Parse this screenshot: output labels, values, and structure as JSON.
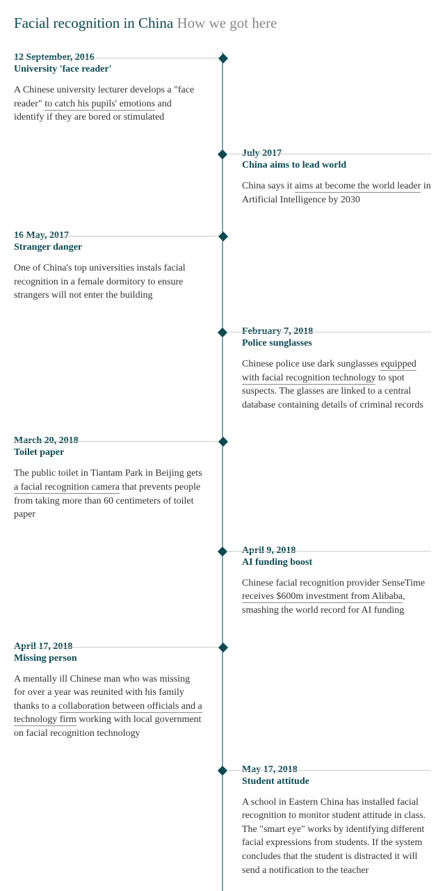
{
  "title": {
    "bold": "Facial recognition in China",
    "light": "How we got here"
  },
  "colors": {
    "accent": "#0a4a52",
    "body": "#333333",
    "muted": "#888888",
    "line": "#cccccc",
    "background": "#ffffff"
  },
  "timeline": [
    {
      "side": "left",
      "date": "12 September, 2016",
      "title": "University 'face reader'",
      "body_parts": [
        {
          "text": "A Chinese university lecturer develops a \"face reader\" ",
          "u": false
        },
        {
          "text": "to catch his pupils' emotions",
          "u": true
        },
        {
          "text": " and identify if they are bored or stimulated",
          "u": false
        }
      ]
    },
    {
      "side": "right",
      "date": "July 2017",
      "title": "China aims to lead world",
      "body_parts": [
        {
          "text": "China says it ",
          "u": false
        },
        {
          "text": "aims at become the world leader",
          "u": true
        },
        {
          "text": " in Artificial Intelligence by 2030",
          "u": false
        }
      ]
    },
    {
      "side": "left",
      "date": "16 May, 2017",
      "title": "Stranger danger",
      "body_parts": [
        {
          "text": "One of China's top universities instals facial recognition in a female dormitory to ensure strangers will not enter the building",
          "u": false
        }
      ]
    },
    {
      "side": "right",
      "date": "February 7, 2018",
      "title": "Police sunglasses",
      "body_parts": [
        {
          "text": "Chinese police use dark sunglasses ",
          "u": false
        },
        {
          "text": "equipped with facial recognition technology",
          "u": true
        },
        {
          "text": " to spot suspects. The glasses are linked to a central database containing details of criminal records",
          "u": false
        }
      ]
    },
    {
      "side": "left",
      "date": "March 20, 2018",
      "title": "Toilet paper",
      "body_parts": [
        {
          "text": "The public toilet in Tiantam Park in Beijing gets ",
          "u": false
        },
        {
          "text": "a facial recognition camera",
          "u": true
        },
        {
          "text": " that prevents people from taking more than 60 centimeters of toilet paper",
          "u": false
        }
      ]
    },
    {
      "side": "right",
      "date": "April 9, 2018",
      "title": "AI funding boost",
      "body_parts": [
        {
          "text": "Chinese facial recognition provider SenseTime ",
          "u": false
        },
        {
          "text": "receives $600m investment from Alibaba",
          "u": true
        },
        {
          "text": ", smashing the world record for AI funding",
          "u": false
        }
      ]
    },
    {
      "side": "left",
      "date": "April 17, 2018",
      "title": "Missing person",
      "body_parts": [
        {
          "text": "A mentally ill Chinese man who was missing for over a year was reunited with his family thanks to a ",
          "u": false
        },
        {
          "text": "collaboration between officials and a technology firm",
          "u": true
        },
        {
          "text": " working with local government on facial recognition technology",
          "u": false
        }
      ]
    },
    {
      "side": "right",
      "date": "May 17, 2018",
      "title": "Student attitude",
      "body_parts": [
        {
          "text": "A school in Eastern China has installed facial recognition to monitor student attitude in class. The \"smart eye\" works by identifying different facial expressions from students. If the system concludes that the student is distracted it will send a notification to the teacher",
          "u": false
        }
      ]
    }
  ]
}
